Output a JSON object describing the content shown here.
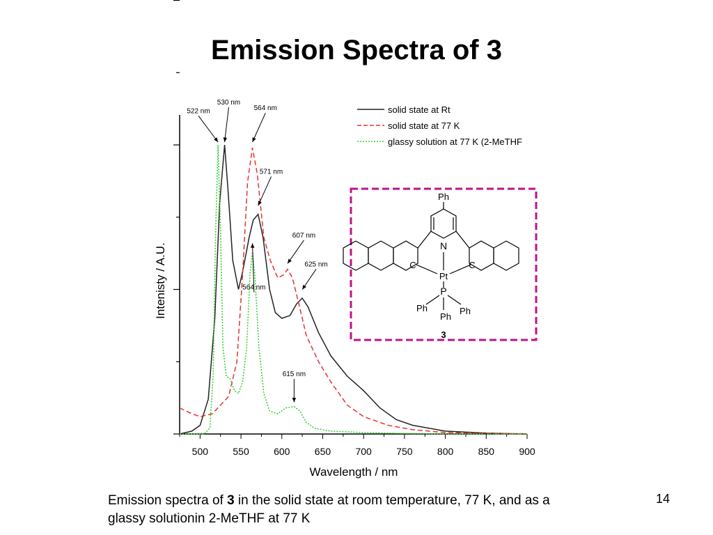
{
  "slide": {
    "title": "Emission Spectra of 3",
    "caption": {
      "before": "Emission spectra of ",
      "bold": "3",
      "after": " in the solid state at room temperature, 77 K, and as a glassy solutionin 2-MeTHF at 77 K"
    },
    "page_number": "14"
  },
  "chart_data": {
    "type": "line",
    "xlabel": "Wavelength / nm",
    "ylabel": "Intenisty / A.U.",
    "xlim": [
      475,
      900
    ],
    "ylim": [
      0,
      1.0
    ],
    "x_ticks": [
      500,
      550,
      600,
      650,
      700,
      750,
      800,
      850,
      900
    ],
    "legend_position": "top-right",
    "series": [
      {
        "name": "solid state at Rt",
        "color": "#222222",
        "style": "solid",
        "points": [
          [
            475,
            0
          ],
          [
            490,
            0.01
          ],
          [
            500,
            0.03
          ],
          [
            510,
            0.12
          ],
          [
            518,
            0.4
          ],
          [
            524,
            0.8
          ],
          [
            530,
            1.0
          ],
          [
            534,
            0.85
          ],
          [
            540,
            0.6
          ],
          [
            547,
            0.5
          ],
          [
            552,
            0.56
          ],
          [
            560,
            0.68
          ],
          [
            565,
            0.74
          ],
          [
            571,
            0.76
          ],
          [
            577,
            0.68
          ],
          [
            585,
            0.5
          ],
          [
            592,
            0.42
          ],
          [
            600,
            0.4
          ],
          [
            610,
            0.41
          ],
          [
            618,
            0.45
          ],
          [
            625,
            0.47
          ],
          [
            632,
            0.44
          ],
          [
            645,
            0.35
          ],
          [
            660,
            0.27
          ],
          [
            680,
            0.2
          ],
          [
            700,
            0.15
          ],
          [
            720,
            0.09
          ],
          [
            740,
            0.05
          ],
          [
            760,
            0.03
          ],
          [
            800,
            0.01
          ],
          [
            850,
            0.003
          ],
          [
            900,
            0
          ]
        ]
      },
      {
        "name": "solid state at 77 K",
        "color": "#e83030",
        "style": "dashed",
        "points": [
          [
            475,
            0.09
          ],
          [
            490,
            0.07
          ],
          [
            500,
            0.06
          ],
          [
            515,
            0.07
          ],
          [
            525,
            0.1
          ],
          [
            535,
            0.13
          ],
          [
            545,
            0.25
          ],
          [
            552,
            0.55
          ],
          [
            558,
            0.87
          ],
          [
            564,
            0.99
          ],
          [
            570,
            0.9
          ],
          [
            578,
            0.68
          ],
          [
            586,
            0.6
          ],
          [
            595,
            0.54
          ],
          [
            602,
            0.55
          ],
          [
            607,
            0.57
          ],
          [
            613,
            0.54
          ],
          [
            620,
            0.46
          ],
          [
            630,
            0.34
          ],
          [
            645,
            0.25
          ],
          [
            660,
            0.18
          ],
          [
            680,
            0.1
          ],
          [
            700,
            0.06
          ],
          [
            730,
            0.03
          ],
          [
            760,
            0.015
          ],
          [
            800,
            0.005
          ],
          [
            850,
            0.002
          ],
          [
            900,
            0
          ]
        ]
      },
      {
        "name": "glassy solution at 77 K (2-MeTHF",
        "color": "#2dce2d",
        "style": "dotted",
        "points": [
          [
            475,
            0
          ],
          [
            505,
            0
          ],
          [
            512,
            0.02
          ],
          [
            516,
            0.2
          ],
          [
            519,
            0.7
          ],
          [
            522,
            1.0
          ],
          [
            525,
            0.7
          ],
          [
            528,
            0.3
          ],
          [
            532,
            0.2
          ],
          [
            537,
            0.19
          ],
          [
            542,
            0.15
          ],
          [
            547,
            0.14
          ],
          [
            552,
            0.18
          ],
          [
            557,
            0.3
          ],
          [
            561,
            0.55
          ],
          [
            564,
            0.63
          ],
          [
            567,
            0.55
          ],
          [
            572,
            0.3
          ],
          [
            578,
            0.14
          ],
          [
            585,
            0.08
          ],
          [
            595,
            0.07
          ],
          [
            605,
            0.09
          ],
          [
            615,
            0.095
          ],
          [
            622,
            0.08
          ],
          [
            630,
            0.04
          ],
          [
            640,
            0.02
          ],
          [
            660,
            0.01
          ],
          [
            700,
            0.005
          ],
          [
            750,
            0.002
          ],
          [
            800,
            0
          ],
          [
            900,
            0
          ]
        ]
      }
    ],
    "annotations": [
      {
        "text": "522 nm",
        "x": 522,
        "y": 1.0,
        "lx": 498,
        "ly": 1.11
      },
      {
        "text": "530 nm",
        "x": 530,
        "y": 1.0,
        "lx": 535,
        "ly": 1.14
      },
      {
        "text": "564 nm",
        "x": 564,
        "y": 1.0,
        "lx": 580,
        "ly": 1.12
      },
      {
        "text": "571 nm",
        "x": 571,
        "y": 0.78,
        "lx": 587,
        "ly": 0.9
      },
      {
        "text": "607 nm",
        "x": 607,
        "y": 0.58,
        "lx": 627,
        "ly": 0.68
      },
      {
        "text": "625 nm",
        "x": 625,
        "y": 0.49,
        "lx": 642,
        "ly": 0.58
      },
      {
        "text": "564 nm",
        "x": 564,
        "y": 0.65,
        "lx": 566,
        "ly": 0.5
      },
      {
        "text": "615 nm",
        "x": 615,
        "y": 0.1,
        "lx": 615,
        "ly": 0.2
      }
    ],
    "structure": {
      "compound_label": "3",
      "atoms": {
        "top": "Ph",
        "nitrogen": "N",
        "carbon_left": "C",
        "carbon_right": "C",
        "platinum": "Pt",
        "phosphorus": "P",
        "ph_left": "Ph",
        "ph_middle": "Ph",
        "ph_right": "Ph"
      }
    }
  }
}
